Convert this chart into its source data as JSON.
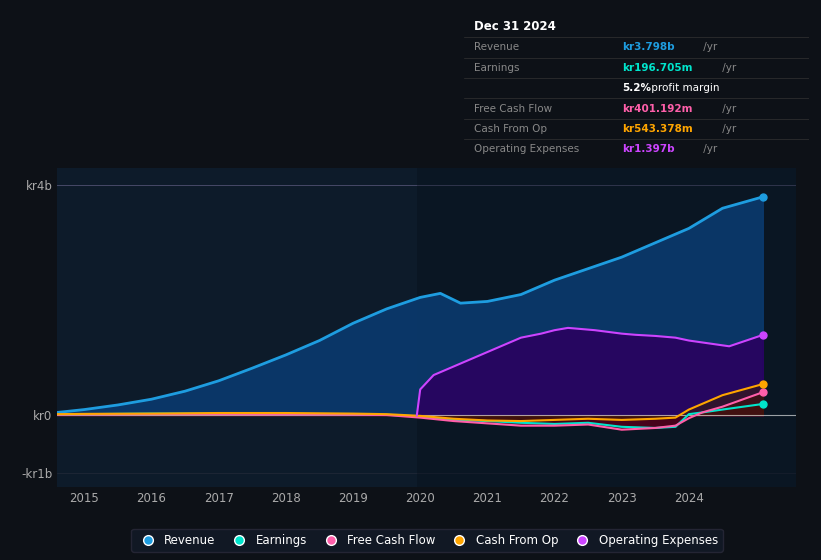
{
  "bg_color": "#0d1117",
  "plot_bg_color": "#0d1b2a",
  "ylim": [
    -1250000000.0,
    4300000000.0
  ],
  "xticks": [
    2015,
    2016,
    2017,
    2018,
    2019,
    2020,
    2021,
    2022,
    2023,
    2024
  ],
  "xlim_start": 2014.6,
  "xlim_end": 2025.6,
  "series": {
    "revenue": {
      "color": "#1e9de0",
      "label": "Revenue"
    },
    "earnings": {
      "color": "#00e5cc",
      "label": "Earnings"
    },
    "free_cash_flow": {
      "color": "#ff5faa",
      "label": "Free Cash Flow"
    },
    "cash_from_op": {
      "color": "#ffa500",
      "label": "Cash From Op"
    },
    "operating_expenses": {
      "color": "#cc44ff",
      "label": "Operating Expenses"
    }
  },
  "revenue_x": [
    2014.6,
    2015.0,
    2015.5,
    2016.0,
    2016.5,
    2017.0,
    2017.5,
    2018.0,
    2018.5,
    2019.0,
    2019.5,
    2020.0,
    2020.3,
    2020.6,
    2021.0,
    2021.5,
    2022.0,
    2022.5,
    2023.0,
    2023.5,
    2024.0,
    2024.5,
    2025.1
  ],
  "revenue_y": [
    50000000.0,
    100000000.0,
    180000000.0,
    280000000.0,
    420000000.0,
    600000000.0,
    820000000.0,
    1050000000.0,
    1300000000.0,
    1600000000.0,
    1850000000.0,
    2050000000.0,
    2120000000.0,
    1950000000.0,
    1980000000.0,
    2100000000.0,
    2350000000.0,
    2550000000.0,
    2750000000.0,
    3000000000.0,
    3250000000.0,
    3600000000.0,
    3798000000.0
  ],
  "opex_x": [
    2019.95,
    2020.0,
    2020.2,
    2020.5,
    2020.8,
    2021.0,
    2021.3,
    2021.5,
    2021.8,
    2022.0,
    2022.2,
    2022.4,
    2022.6,
    2022.8,
    2023.0,
    2023.2,
    2023.5,
    2023.8,
    2024.0,
    2024.3,
    2024.6,
    2025.1
  ],
  "opex_y": [
    0.0,
    450000000.0,
    700000000.0,
    850000000.0,
    1000000000.0,
    1100000000.0,
    1250000000.0,
    1350000000.0,
    1420000000.0,
    1480000000.0,
    1520000000.0,
    1500000000.0,
    1480000000.0,
    1450000000.0,
    1420000000.0,
    1400000000.0,
    1380000000.0,
    1350000000.0,
    1300000000.0,
    1250000000.0,
    1200000000.0,
    1397000000.0
  ],
  "earnings_x": [
    2014.6,
    2015.0,
    2016.0,
    2017.0,
    2018.0,
    2019.0,
    2019.5,
    2020.0,
    2020.5,
    2021.0,
    2021.5,
    2022.0,
    2022.5,
    2023.0,
    2023.5,
    2023.8,
    2024.0,
    2024.2,
    2024.5,
    2025.1
  ],
  "earnings_y": [
    10000000.0,
    20000000.0,
    30000000.0,
    30000000.0,
    20000000.0,
    15000000.0,
    10000000.0,
    -20000000.0,
    -80000000.0,
    -100000000.0,
    -130000000.0,
    -150000000.0,
    -130000000.0,
    -200000000.0,
    -220000000.0,
    -200000000.0,
    20000000.0,
    50000000.0,
    100000000.0,
    197000000.0
  ],
  "fcf_x": [
    2014.6,
    2015.0,
    2016.0,
    2017.0,
    2018.0,
    2019.0,
    2019.5,
    2020.0,
    2020.5,
    2021.0,
    2021.5,
    2022.0,
    2022.5,
    2023.0,
    2023.5,
    2023.8,
    2024.0,
    2024.2,
    2024.5,
    2025.1
  ],
  "fcf_y": [
    10000000.0,
    15000000.0,
    20000000.0,
    20000000.0,
    15000000.0,
    10000000.0,
    5000000.0,
    -40000000.0,
    -100000000.0,
    -140000000.0,
    -180000000.0,
    -180000000.0,
    -160000000.0,
    -250000000.0,
    -220000000.0,
    -180000000.0,
    -50000000.0,
    50000000.0,
    150000000.0,
    401000000.0
  ],
  "cashop_x": [
    2014.6,
    2015.0,
    2016.0,
    2017.0,
    2018.0,
    2019.0,
    2019.5,
    2020.0,
    2020.5,
    2021.0,
    2021.5,
    2022.0,
    2022.5,
    2023.0,
    2023.5,
    2023.8,
    2024.0,
    2024.2,
    2024.5,
    2025.1
  ],
  "cashop_y": [
    20000000.0,
    25000000.0,
    30000000.0,
    40000000.0,
    40000000.0,
    30000000.0,
    20000000.0,
    -10000000.0,
    -60000000.0,
    -90000000.0,
    -100000000.0,
    -80000000.0,
    -60000000.0,
    -80000000.0,
    -60000000.0,
    -40000000.0,
    100000000.0,
    200000000.0,
    350000000.0,
    543000000.0
  ],
  "table": {
    "title": "Dec 31 2024",
    "rows": [
      {
        "label": "Revenue",
        "value": "kr3.798b",
        "suffix": " /yr",
        "color": "#1e9de0"
      },
      {
        "label": "Earnings",
        "value": "kr196.705m",
        "suffix": " /yr",
        "color": "#00e5cc"
      },
      {
        "label": "",
        "value": "5.2% profit margin",
        "suffix": "",
        "color": "#ffffff",
        "is_margin": true
      },
      {
        "label": "Free Cash Flow",
        "value": "kr401.192m",
        "suffix": " /yr",
        "color": "#ff5faa"
      },
      {
        "label": "Cash From Op",
        "value": "kr543.378m",
        "suffix": " /yr",
        "color": "#ffa500"
      },
      {
        "label": "Operating Expenses",
        "value": "kr1.397b",
        "suffix": " /yr",
        "color": "#cc44ff"
      }
    ]
  }
}
